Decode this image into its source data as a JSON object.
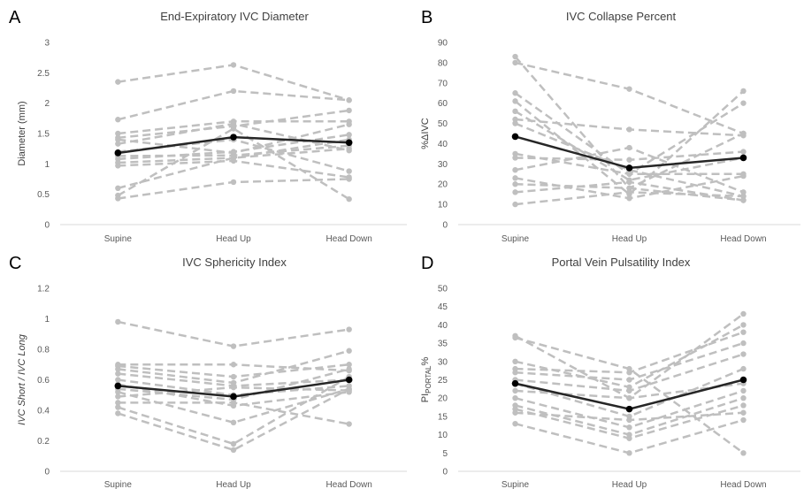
{
  "colors": {
    "individual": "#bfbfbf",
    "mean": "#262626",
    "axis": "#d9d9d9"
  },
  "chart_data": [
    {
      "panel": "A",
      "type": "line",
      "title": "End-Expiratory IVC Diameter",
      "ylabel": "Diameter (mm)",
      "ylabel_italic": false,
      "categories": [
        "Supine",
        "Head Up",
        "Head Down"
      ],
      "ylim": [
        0,
        3
      ],
      "yticks": [
        "0",
        "0.5",
        "1",
        "1.5",
        "2",
        "2.5",
        "3"
      ],
      "individual_series": [
        [
          2.35,
          2.63,
          2.05
        ],
        [
          1.73,
          2.2,
          2.05
        ],
        [
          1.5,
          1.7,
          1.7
        ],
        [
          1.43,
          1.62,
          1.88
        ],
        [
          1.4,
          1.18,
          1.65
        ],
        [
          1.33,
          1.66,
          1.22
        ],
        [
          1.2,
          1.4,
          0.88
        ],
        [
          1.13,
          1.14,
          1.3
        ],
        [
          1.08,
          1.2,
          1.48
        ],
        [
          1.02,
          1.1,
          1.4
        ],
        [
          0.97,
          1.05,
          0.78
        ],
        [
          0.6,
          1.1,
          1.25
        ],
        [
          0.48,
          1.58,
          0.42
        ],
        [
          0.43,
          0.7,
          0.75
        ]
      ],
      "mean_series": [
        1.18,
        1.44,
        1.35
      ]
    },
    {
      "panel": "B",
      "type": "line",
      "title": "IVC Collapse Percent",
      "ylabel": "%ΔIVC",
      "ylabel_italic": false,
      "categories": [
        "Supine",
        "Head Up",
        "Head Down"
      ],
      "ylim": [
        0,
        90
      ],
      "yticks": [
        "0",
        "10",
        "20",
        "30",
        "40",
        "50",
        "60",
        "70",
        "80",
        "90"
      ],
      "individual_series": [
        [
          83,
          18,
          12
        ],
        [
          80,
          67,
          45
        ],
        [
          65,
          25,
          60
        ],
        [
          61,
          15,
          66
        ],
        [
          56,
          22,
          33
        ],
        [
          52,
          47,
          44
        ],
        [
          50,
          27,
          14
        ],
        [
          35,
          25,
          25
        ],
        [
          33,
          32,
          36
        ],
        [
          27,
          38,
          16
        ],
        [
          23,
          13,
          24
        ],
        [
          20,
          18,
          45
        ],
        [
          16,
          21,
          12
        ],
        [
          10,
          16,
          14
        ]
      ],
      "mean_series": [
        43.5,
        28,
        33
      ]
    },
    {
      "panel": "C",
      "type": "line",
      "title": "IVC Sphericity Index",
      "ylabel": "IVC Short / IVC Long",
      "ylabel_italic": true,
      "categories": [
        "Supine",
        "Head Up",
        "Head Down"
      ],
      "ylim": [
        0,
        1.2
      ],
      "yticks": [
        "0",
        "0.2",
        "0.4",
        "0.6",
        "0.8",
        "1",
        "1.2"
      ],
      "individual_series": [
        [
          0.98,
          0.82,
          0.93
        ],
        [
          0.7,
          0.7,
          0.66
        ],
        [
          0.69,
          0.62,
          0.7
        ],
        [
          0.67,
          0.58,
          0.79
        ],
        [
          0.64,
          0.56,
          0.6
        ],
        [
          0.6,
          0.5,
          0.56
        ],
        [
          0.57,
          0.43,
          0.52
        ],
        [
          0.54,
          0.47,
          0.67
        ],
        [
          0.52,
          0.32,
          0.54
        ],
        [
          0.49,
          0.55,
          0.53
        ],
        [
          0.45,
          0.45,
          0.31
        ],
        [
          0.42,
          0.18,
          0.62
        ],
        [
          0.38,
          0.14,
          0.54
        ]
      ],
      "mean_series": [
        0.56,
        0.49,
        0.6
      ]
    },
    {
      "panel": "D",
      "type": "line",
      "title": "Portal Vein Pulsatility Index",
      "ylabel": "PIPORTAL%",
      "ylabel_main": "PI",
      "ylabel_sub": "PORTAL",
      "ylabel_suffix": "%",
      "ylabel_italic": false,
      "categories": [
        "Supine",
        "Head Up",
        "Head Down"
      ],
      "ylim": [
        0,
        50
      ],
      "yticks": [
        "0",
        "5",
        "10",
        "15",
        "20",
        "25",
        "30",
        "35",
        "40",
        "45",
        "50"
      ],
      "individual_series": [
        [
          37,
          20,
          43
        ],
        [
          36.5,
          28,
          5
        ],
        [
          30,
          23,
          40
        ],
        [
          28,
          27,
          38
        ],
        [
          27,
          25,
          35
        ],
        [
          25,
          22,
          32
        ],
        [
          24,
          15,
          28
        ],
        [
          22,
          20,
          24
        ],
        [
          20,
          12,
          22
        ],
        [
          18,
          10,
          20
        ],
        [
          17,
          9,
          18
        ],
        [
          16,
          14,
          16
        ],
        [
          13,
          5,
          14
        ]
      ],
      "mean_series": [
        24,
        17,
        25
      ]
    }
  ]
}
